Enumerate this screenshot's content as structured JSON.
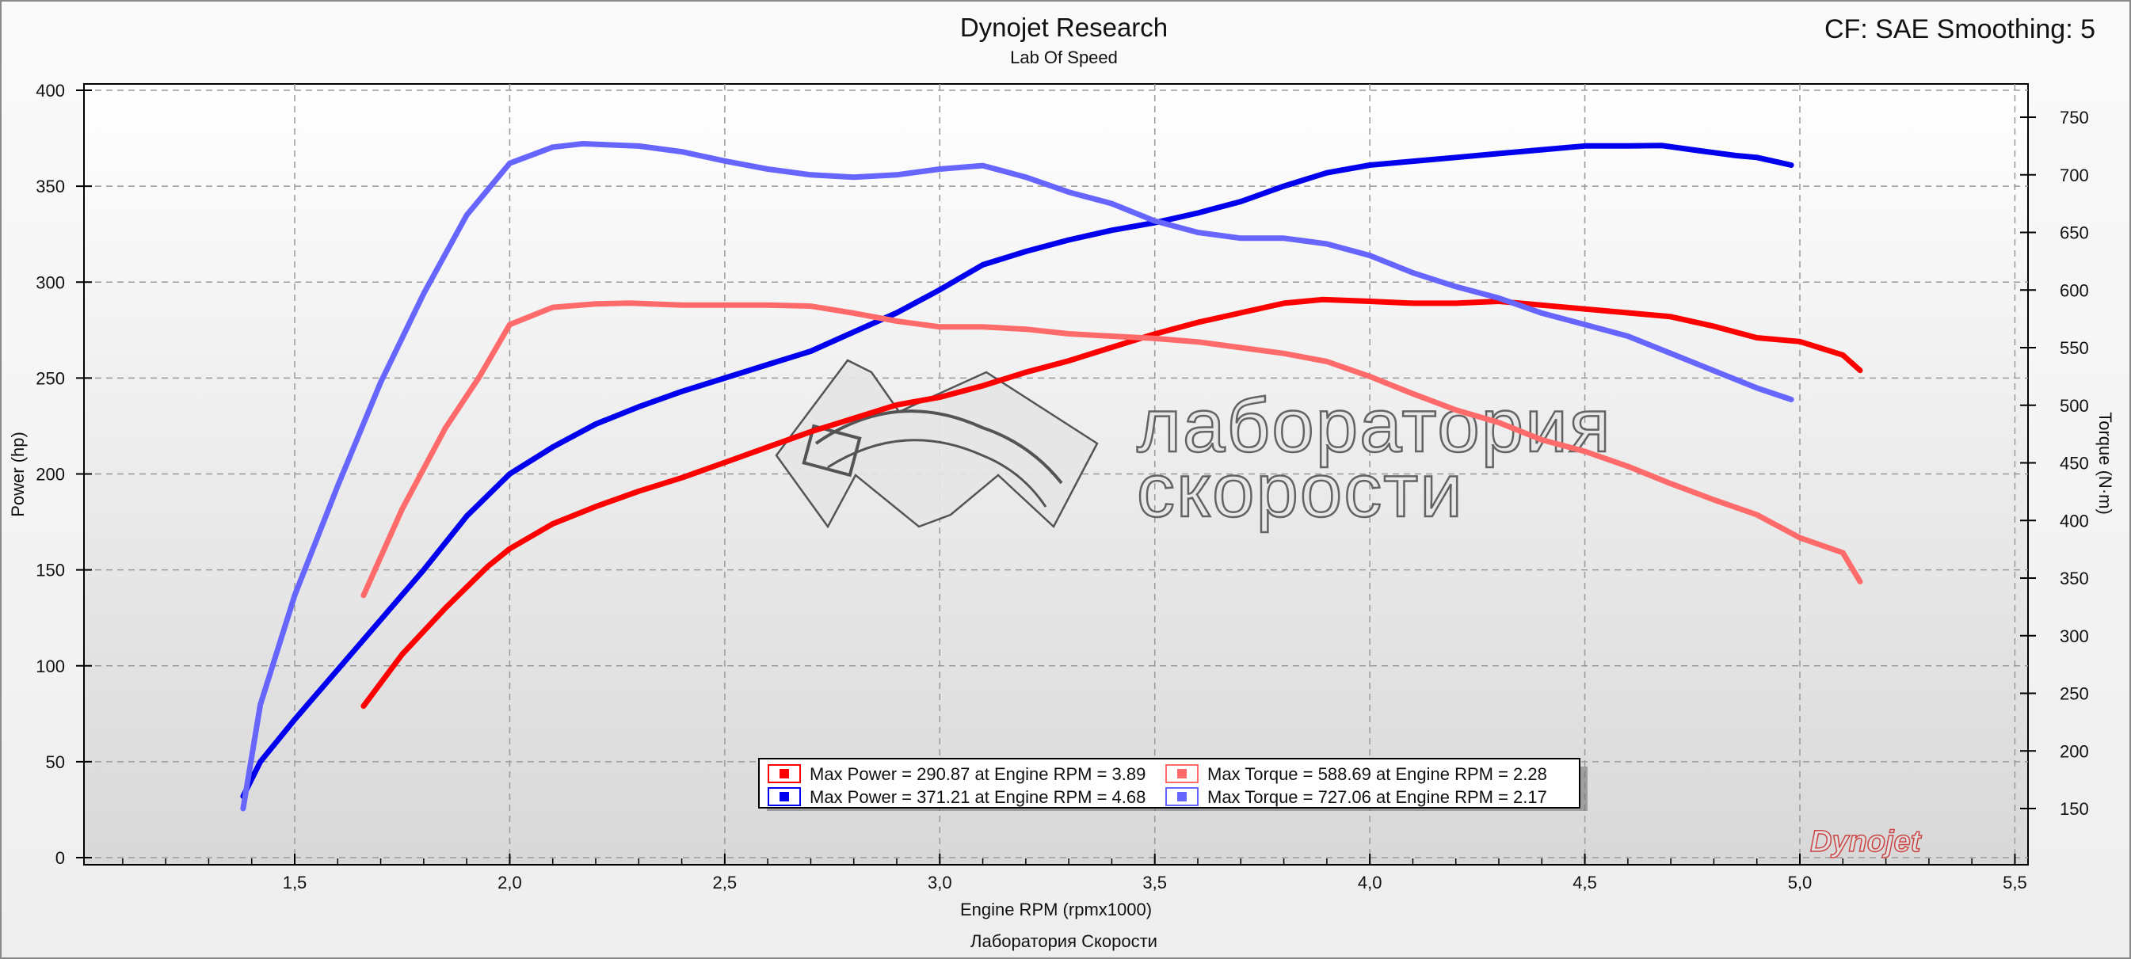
{
  "header": {
    "title": "Dynojet Research",
    "subtitle": "Lab Of Speed",
    "correction": "CF: SAE Smoothing: 5",
    "footer": "Лаборатория Скорости"
  },
  "watermark": {
    "line1": "лаборатория",
    "line2": "скорости",
    "brand": "Dynojet"
  },
  "colors": {
    "power_run1": "#ff0000",
    "power_run2": "#0000ee",
    "torque_run1": "#ff6b6b",
    "torque_run2": "#6666ff"
  },
  "legend": [
    {
      "text": "Max Power = 290.87 at Engine RPM = 3.89",
      "color": "#ff0000"
    },
    {
      "text": "Max Torque = 588.69 at Engine RPM = 2.28",
      "color": "#ff6b6b"
    },
    {
      "text": "Max Power = 371.21 at Engine RPM = 4.68",
      "color": "#0000ee"
    },
    {
      "text": "Max Torque = 727.06 at Engine RPM = 2.17",
      "color": "#6666ff"
    }
  ],
  "chart_data": {
    "type": "line",
    "title": "Dynojet Research",
    "subtitle": "Lab Of Speed",
    "xlabel": "Engine RPM (rpmx1000)",
    "ylabel": "Power (hp)",
    "y2label": "Torque (N·m)",
    "xlim": [
      1.05,
      5.5
    ],
    "ylim": [
      0,
      400
    ],
    "y2lim": [
      100,
      775
    ],
    "x_ticks": [
      "1,5",
      "2,0",
      "2,5",
      "3,0",
      "3,5",
      "4,0",
      "4,5",
      "5,0",
      "5,5"
    ],
    "x_tick_values": [
      1.5,
      2.0,
      2.5,
      3.0,
      3.5,
      4.0,
      4.5,
      5.0,
      5.5
    ],
    "y_ticks": [
      0,
      50,
      100,
      150,
      200,
      250,
      300,
      350,
      400
    ],
    "y2_ticks": [
      150,
      200,
      250,
      300,
      350,
      400,
      450,
      500,
      550,
      600,
      650,
      700,
      750
    ],
    "grid": true,
    "legend_position": "bottom-center",
    "series": [
      {
        "name": "Max Power = 290.87 at Engine RPM = 3.89",
        "axis": "left",
        "color": "#ff0000",
        "x": [
          1.66,
          1.75,
          1.85,
          1.95,
          2.0,
          2.1,
          2.2,
          2.3,
          2.4,
          2.5,
          2.6,
          2.7,
          2.8,
          2.9,
          3.0,
          3.1,
          3.2,
          3.3,
          3.4,
          3.5,
          3.6,
          3.7,
          3.8,
          3.89,
          4.0,
          4.1,
          4.2,
          4.3,
          4.4,
          4.5,
          4.6,
          4.7,
          4.8,
          4.9,
          5.0,
          5.1,
          5.14
        ],
        "y": [
          79,
          106,
          130,
          152,
          161,
          174,
          183,
          191,
          198,
          206,
          214,
          222,
          229,
          236,
          240,
          246,
          253,
          259,
          266,
          273,
          279,
          284,
          289,
          290.9,
          290,
          289,
          289,
          290,
          288,
          286,
          284,
          282,
          277,
          271,
          269,
          262,
          254
        ]
      },
      {
        "name": "Max Power = 371.21 at Engine RPM = 4.68",
        "axis": "left",
        "color": "#0000ee",
        "x": [
          1.38,
          1.42,
          1.5,
          1.6,
          1.7,
          1.8,
          1.9,
          2.0,
          2.1,
          2.2,
          2.3,
          2.4,
          2.5,
          2.6,
          2.7,
          2.8,
          2.9,
          3.0,
          3.1,
          3.2,
          3.3,
          3.4,
          3.5,
          3.6,
          3.7,
          3.8,
          3.9,
          4.0,
          4.1,
          4.2,
          4.3,
          4.4,
          4.5,
          4.6,
          4.68,
          4.75,
          4.85,
          4.9,
          4.98
        ],
        "y": [
          32,
          50,
          72,
          98,
          124,
          150,
          178,
          200,
          214,
          226,
          235,
          243,
          250,
          257,
          264,
          274,
          284,
          296,
          309,
          316,
          322,
          327,
          331,
          336,
          342,
          350,
          357,
          361,
          363,
          365,
          367,
          369,
          371,
          371,
          371.2,
          369,
          366,
          365,
          361
        ]
      },
      {
        "name": "Max Torque = 588.69 at Engine RPM = 2.28",
        "axis": "right",
        "color": "#ff6b6b",
        "x": [
          1.66,
          1.75,
          1.85,
          1.93,
          2.0,
          2.1,
          2.2,
          2.28,
          2.4,
          2.5,
          2.6,
          2.7,
          2.8,
          2.9,
          3.0,
          3.1,
          3.2,
          3.3,
          3.4,
          3.5,
          3.6,
          3.7,
          3.8,
          3.9,
          4.0,
          4.1,
          4.2,
          4.3,
          4.4,
          4.5,
          4.6,
          4.7,
          4.8,
          4.9,
          5.0,
          5.1,
          5.14
        ],
        "y": [
          335,
          410,
          480,
          525,
          570,
          585,
          588,
          588.7,
          587,
          587,
          587,
          586,
          580,
          573,
          568,
          568,
          566,
          562,
          560,
          558,
          555,
          550,
          545,
          538,
          525,
          510,
          496,
          485,
          470,
          460,
          447,
          432,
          418,
          405,
          385,
          372,
          347
        ]
      },
      {
        "name": "Max Torque = 727.06 at Engine RPM = 2.17",
        "axis": "right",
        "color": "#6666ff",
        "x": [
          1.38,
          1.42,
          1.5,
          1.6,
          1.7,
          1.8,
          1.9,
          2.0,
          2.1,
          2.17,
          2.3,
          2.4,
          2.5,
          2.6,
          2.7,
          2.8,
          2.9,
          3.0,
          3.1,
          3.2,
          3.3,
          3.4,
          3.5,
          3.6,
          3.7,
          3.8,
          3.9,
          4.0,
          4.1,
          4.2,
          4.3,
          4.4,
          4.5,
          4.6,
          4.7,
          4.8,
          4.9,
          4.98
        ],
        "y": [
          150,
          240,
          335,
          430,
          520,
          597,
          665,
          710,
          724,
          727,
          725,
          720,
          712,
          705,
          700,
          698,
          700,
          705,
          708,
          698,
          685,
          675,
          660,
          650,
          645,
          645,
          640,
          630,
          615,
          603,
          593,
          580,
          570,
          560,
          545,
          530,
          515,
          505
        ]
      }
    ]
  }
}
